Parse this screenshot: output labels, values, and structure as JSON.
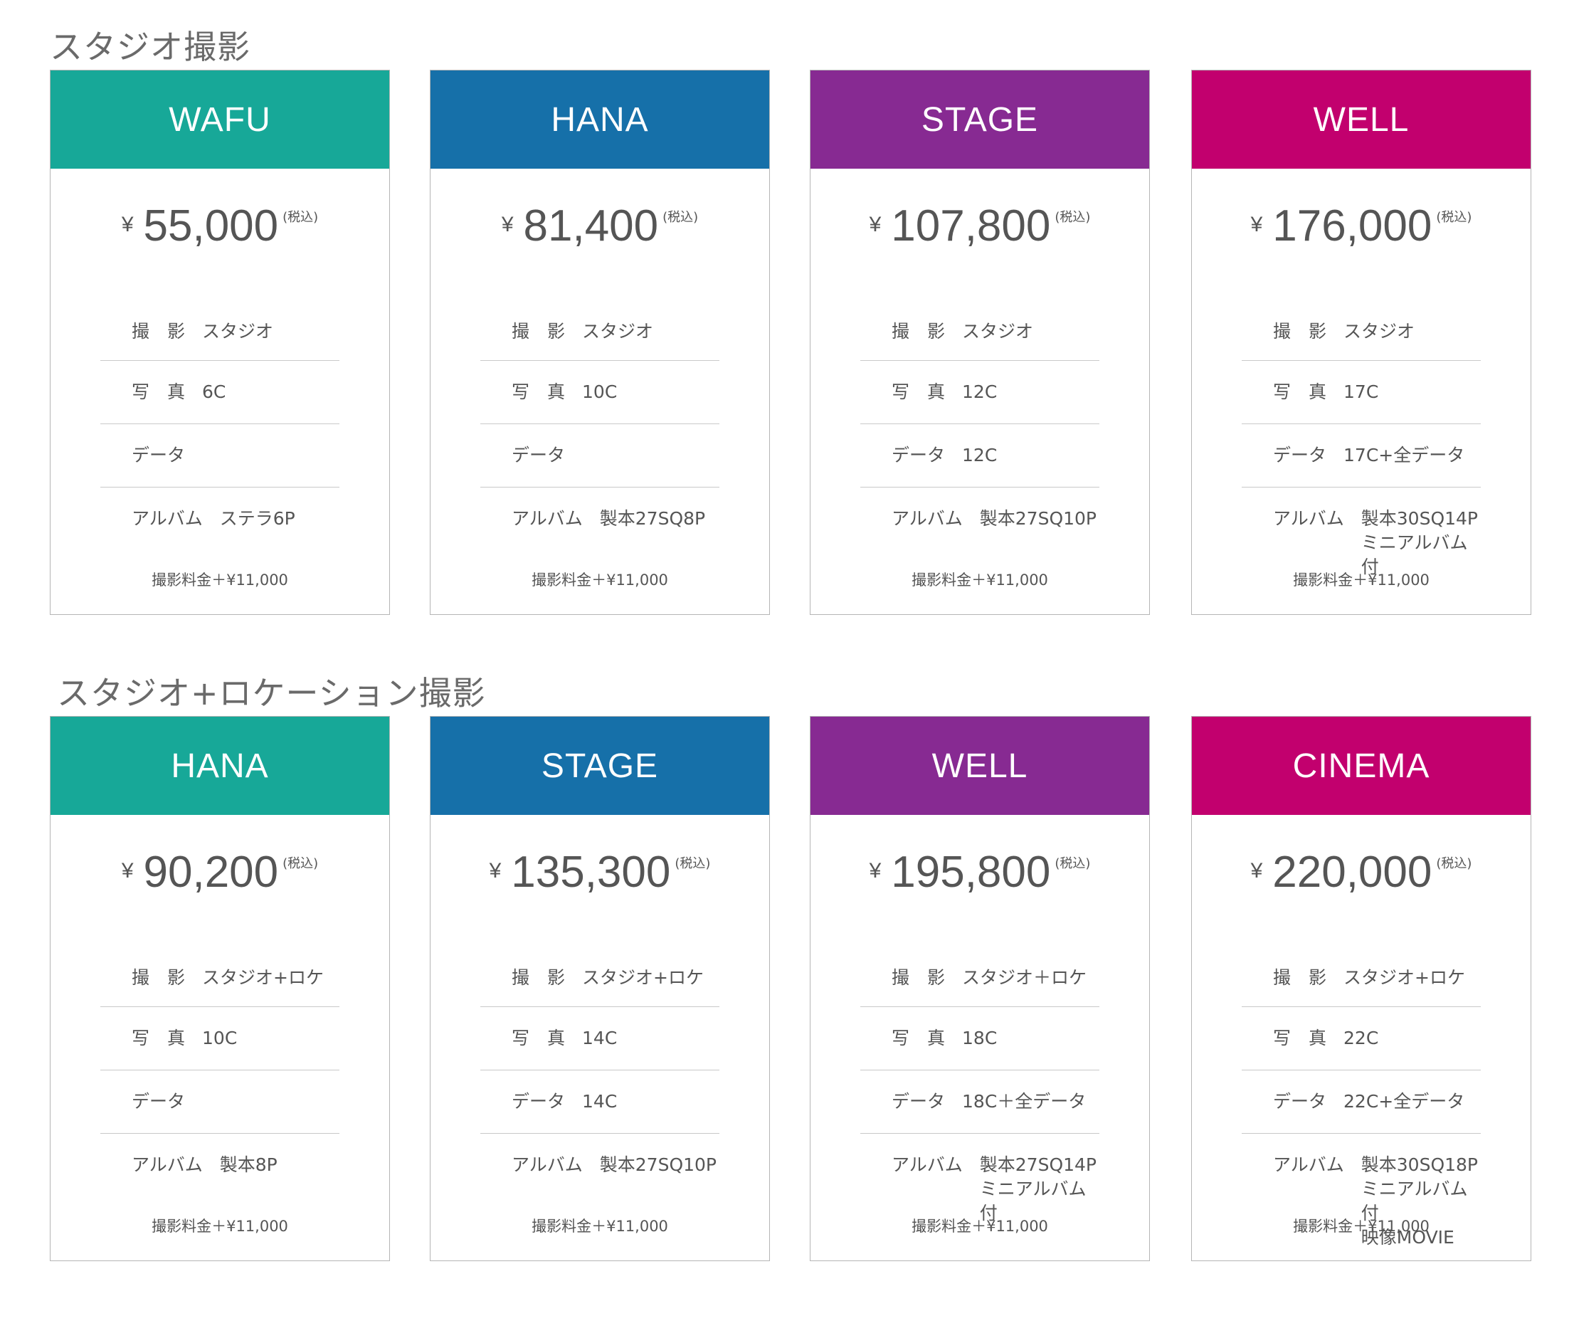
{
  "sections": [
    {
      "title": "スタジオ撮影",
      "cards": [
        {
          "name": "WAFU",
          "color": "#17a898",
          "yen": "¥",
          "amount": "55,000",
          "tax": "(税込)",
          "items": [
            {
              "label": "撮　影",
              "value": "スタジオ"
            },
            {
              "label": "写　真",
              "value": "6C"
            },
            {
              "label": "データ",
              "value": ""
            },
            {
              "label": "アルバム",
              "value": "ステラ6P"
            }
          ],
          "footnote": "撮影料金＋¥11,000"
        },
        {
          "name": "HANA",
          "color": "#1670a9",
          "yen": "¥",
          "amount": "81,400",
          "tax": "(税込)",
          "items": [
            {
              "label": "撮　影",
              "value": "スタジオ"
            },
            {
              "label": "写　真",
              "value": "10C"
            },
            {
              "label": "データ",
              "value": ""
            },
            {
              "label": "アルバム",
              "value": "製本27SQ8P"
            }
          ],
          "footnote": "撮影料金＋¥11,000"
        },
        {
          "name": "STAGE",
          "color": "#872a92",
          "yen": "¥",
          "amount": "107,800",
          "tax": "(税込)",
          "items": [
            {
              "label": "撮　影",
              "value": "スタジオ"
            },
            {
              "label": "写　真",
              "value": "12C"
            },
            {
              "label": "データ",
              "value": "12C"
            },
            {
              "label": "アルバム",
              "value": "製本27SQ10P"
            }
          ],
          "footnote": "撮影料金＋¥11,000"
        },
        {
          "name": "WELL",
          "color": "#c2006e",
          "yen": "¥",
          "amount": "176,000",
          "tax": "(税込)",
          "items": [
            {
              "label": "撮　影",
              "value": "スタジオ"
            },
            {
              "label": "写　真",
              "value": "17C"
            },
            {
              "label": "データ",
              "value": "17C+全データ"
            },
            {
              "label": "アルバム",
              "value": "製本30SQ14P\nミニアルバム付"
            }
          ],
          "footnote": "撮影料金＋¥11,000"
        }
      ]
    },
    {
      "title": "スタジオ+ロケーション撮影",
      "cards": [
        {
          "name": "HANA",
          "color": "#17a898",
          "yen": "¥",
          "amount": "90,200",
          "tax": "(税込)",
          "items": [
            {
              "label": "撮　影",
              "value": "スタジオ+ロケ"
            },
            {
              "label": "写　真",
              "value": "10C"
            },
            {
              "label": "データ",
              "value": ""
            },
            {
              "label": "アルバム",
              "value": "製本8P"
            }
          ],
          "footnote": "撮影料金＋¥11,000"
        },
        {
          "name": "STAGE",
          "color": "#1670a9",
          "yen": "¥",
          "amount": "135,300",
          "tax": "(税込)",
          "items": [
            {
              "label": "撮　影",
              "value": "スタジオ+ロケ"
            },
            {
              "label": "写　真",
              "value": "14C"
            },
            {
              "label": "データ",
              "value": "14C"
            },
            {
              "label": "アルバム",
              "value": "製本27SQ10P"
            }
          ],
          "footnote": "撮影料金＋¥11,000"
        },
        {
          "name": "WELL",
          "color": "#872a92",
          "yen": "¥",
          "amount": "195,800",
          "tax": "(税込)",
          "items": [
            {
              "label": "撮　影",
              "value": "スタジオ＋ロケ"
            },
            {
              "label": "写　真",
              "value": "18C"
            },
            {
              "label": "データ",
              "value": "18C＋全データ"
            },
            {
              "label": "アルバム",
              "value": "製本27SQ14P\nミニアルバム付"
            }
          ],
          "footnote": "撮影料金＋¥11,000"
        },
        {
          "name": "CINEMA",
          "color": "#c2006e",
          "yen": "¥",
          "amount": "220,000",
          "tax": "(税込)",
          "items": [
            {
              "label": "撮　影",
              "value": "スタジオ+ロケ"
            },
            {
              "label": "写　真",
              "value": "22C"
            },
            {
              "label": "データ",
              "value": "22C+全データ"
            },
            {
              "label": "アルバム",
              "value": "製本30SQ18P\nミニアルバム付\n映像MOVIE"
            }
          ],
          "footnote": "撮影料金＋¥11,000"
        }
      ]
    }
  ]
}
